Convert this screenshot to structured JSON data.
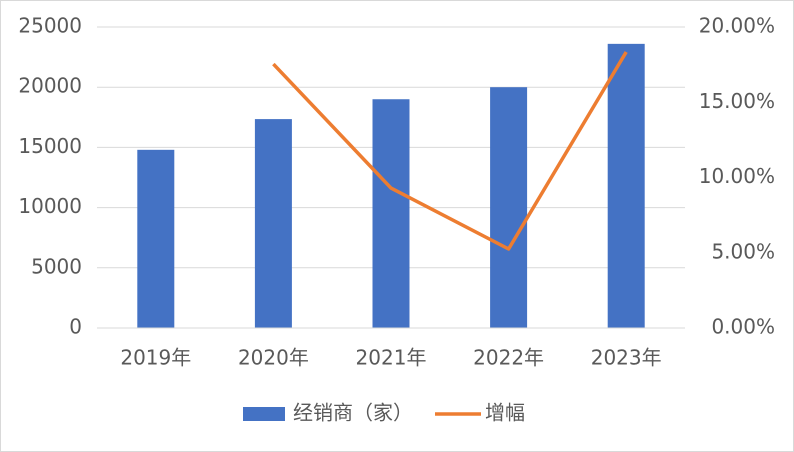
{
  "chart_data": {
    "type": "bar",
    "categories": [
      "2019年",
      "2020年",
      "2021年",
      "2022年",
      "2023年"
    ],
    "series": [
      {
        "name": "经销商（家）",
        "color": "#4472c4",
        "values": [
          14800,
          17350,
          19000,
          20000,
          23600
        ]
      },
      {
        "name": "增幅",
        "color": "#ed7d31",
        "type": "line",
        "axis": "y2",
        "values": [
          null,
          17.54,
          9.3,
          5.25,
          18.34
        ]
      }
    ],
    "ylim": [
      0,
      25000
    ],
    "yticks": [
      0,
      5000,
      10000,
      15000,
      20000,
      25000
    ],
    "y2lim": [
      0,
      20
    ],
    "y2ticks": [
      {
        "value": 0,
        "label": "0.00%"
      },
      {
        "value": 5,
        "label": "5.00%"
      },
      {
        "value": 10,
        "label": "10.00%"
      },
      {
        "value": 15,
        "label": "15.00%"
      },
      {
        "value": 20,
        "label": "20.00%"
      }
    ],
    "grid": true,
    "legend": "bottom"
  }
}
